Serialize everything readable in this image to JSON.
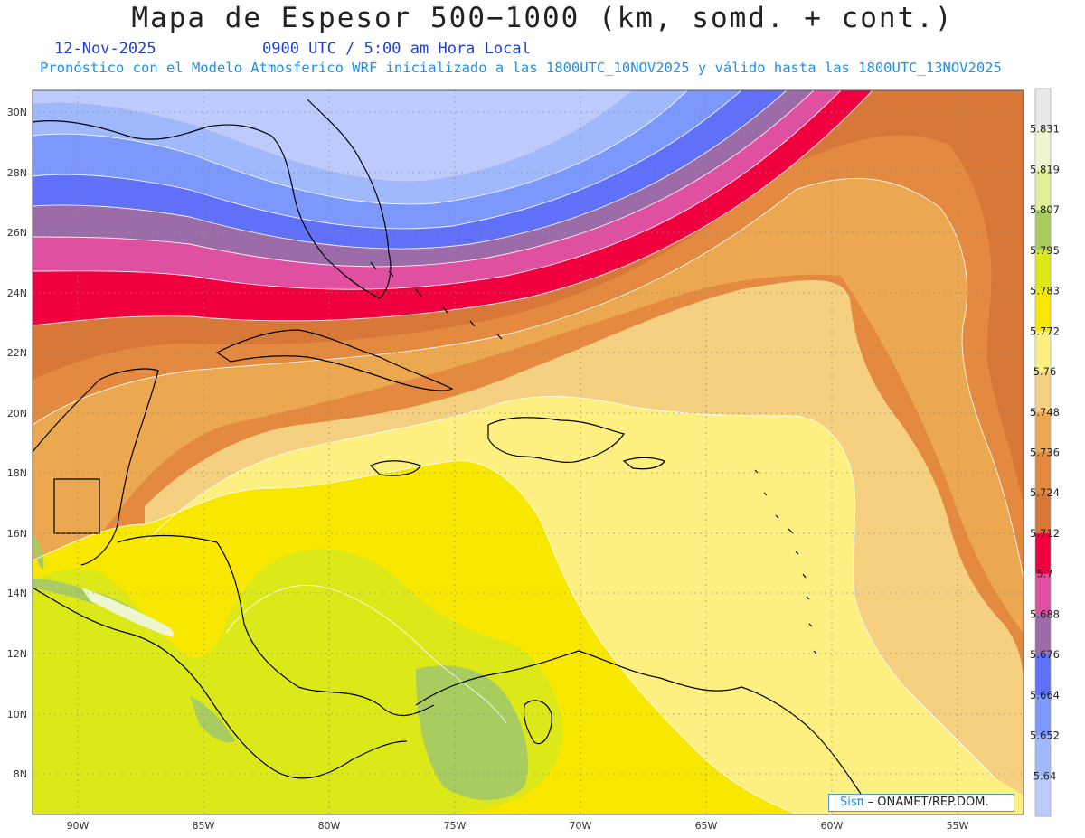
{
  "header": {
    "title": "Mapa de Espesor 500−1000 (km, somd. + cont.)",
    "date": "12-Nov-2025",
    "time": "0900 UTC / 5:00 am Hora Local",
    "forecast_note": "Pronóstico con el Modelo Atmosferico WRF inicializado a las 1800UTC_10NOV2025 y válido hasta las  1800UTC_13NOV2025"
  },
  "axes": {
    "lat_labels": [
      "30N",
      "28N",
      "26N",
      "24N",
      "22N",
      "20N",
      "18N",
      "16N",
      "14N",
      "12N",
      "10N",
      "8N"
    ],
    "lon_labels": [
      "90W",
      "85W",
      "80W",
      "75W",
      "70W",
      "65W",
      "60W",
      "55W"
    ]
  },
  "colorbar": {
    "labels": [
      "5.831",
      "5.819",
      "5.807",
      "5.795",
      "5.783",
      "5.772",
      "5.76",
      "5.748",
      "5.736",
      "5.724",
      "5.712",
      "5.7",
      "5.688",
      "5.676",
      "5.664",
      "5.652",
      "5.64"
    ],
    "colors": [
      "#e8e8e8",
      "#eef6d0",
      "#dff09a",
      "#a8cc60",
      "#dde818",
      "#f8e800",
      "#fdf080",
      "#f5d080",
      "#eca850",
      "#e48a40",
      "#d87838",
      "#f0003e",
      "#e050a0",
      "#9c6ca8",
      "#6070f8",
      "#7c98fc",
      "#a0b8fc",
      "#bccbfc"
    ]
  },
  "credit": {
    "brand": "Sisπ",
    "rest": "–  ONAMET/REP.DOM."
  }
}
